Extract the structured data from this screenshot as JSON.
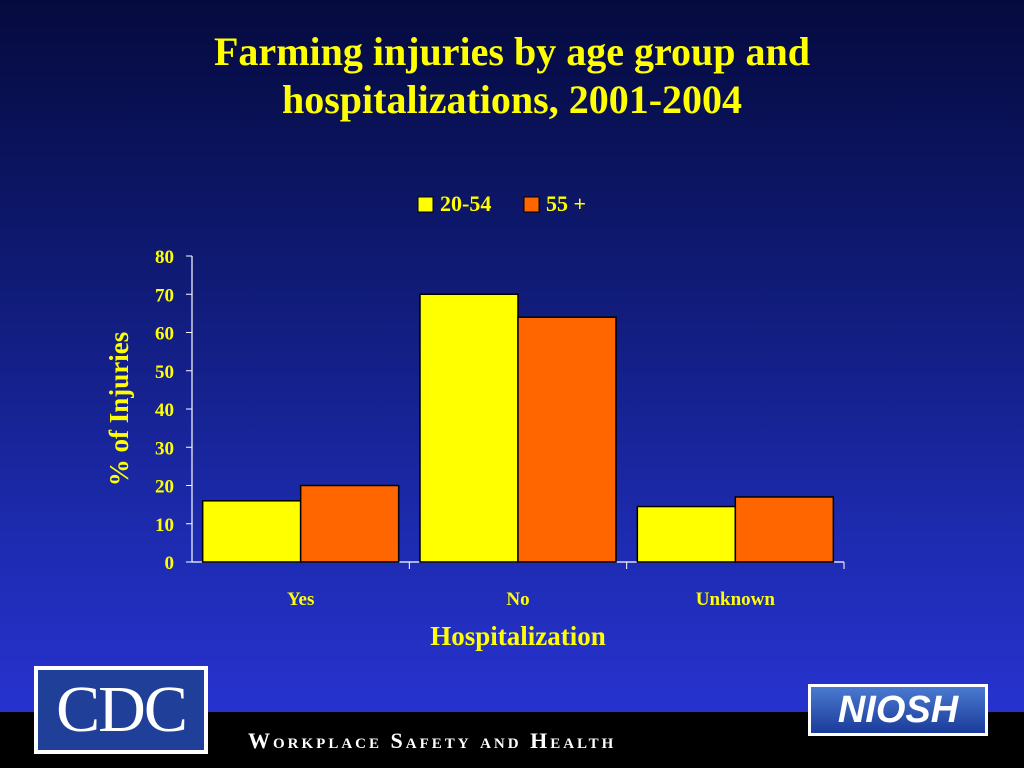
{
  "slide": {
    "title_line1": "Farming injuries by age group and",
    "title_line2": "hospitalizations, 2001-2004",
    "footer": "Workplace Safety and Health",
    "cdc_logo": "CDC",
    "niosh_logo": "NIOSH"
  },
  "colors": {
    "title": "#ffff00",
    "series_20_54": "#ffff00",
    "series_55_plus": "#ff6600",
    "text": "#ffff00"
  },
  "chart_data": {
    "type": "bar",
    "title": "",
    "xlabel": "Hospitalization",
    "ylabel": "% of Injuries",
    "categories": [
      "Yes",
      "No",
      "Unknown"
    ],
    "series": [
      {
        "name": "20-54",
        "values": [
          16,
          70,
          14.5
        ]
      },
      {
        "name": "55 +",
        "values": [
          20,
          64,
          17
        ]
      }
    ],
    "ylim": [
      0,
      80
    ],
    "yticks": [
      0,
      10,
      20,
      30,
      40,
      50,
      60,
      70,
      80
    ],
    "grid": false,
    "legend": "top-center"
  }
}
